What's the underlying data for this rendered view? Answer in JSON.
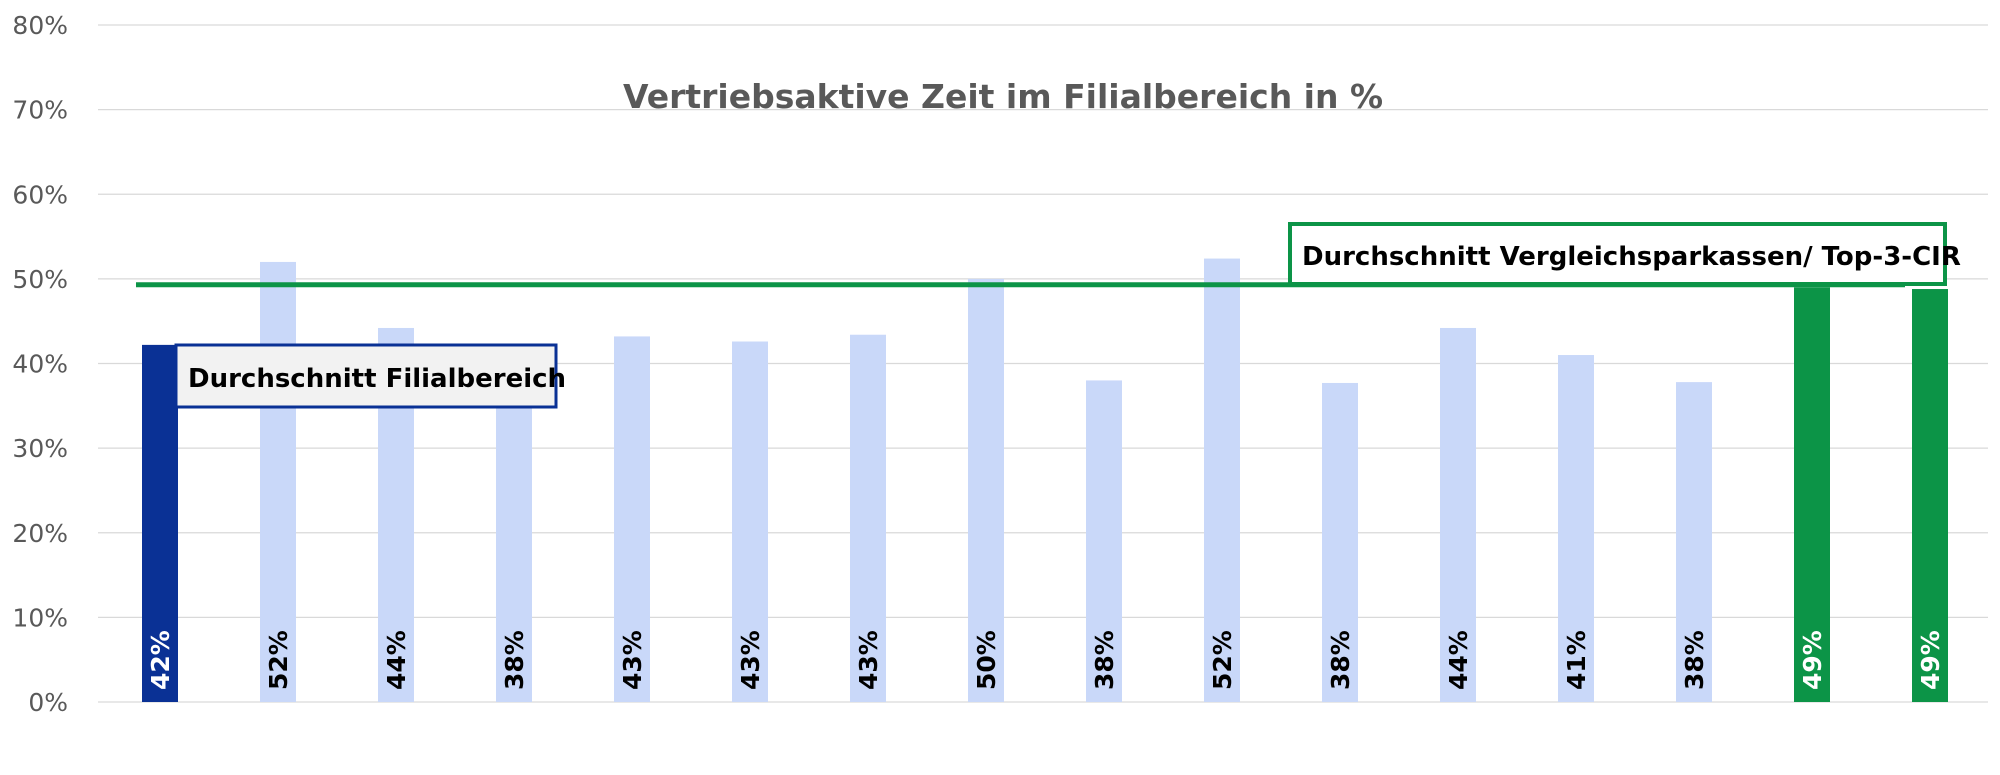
{
  "chart_data": {
    "type": "bar",
    "title": "Vertriebsaktive Zeit im Filialbereich in %",
    "xlabel": "",
    "ylabel": "",
    "ylim": [
      0,
      80
    ],
    "yticks": [
      0,
      10,
      20,
      30,
      40,
      50,
      60,
      70,
      80
    ],
    "ytick_labels": [
      "0%",
      "10%",
      "20%",
      "30%",
      "40%",
      "50%",
      "60%",
      "70%",
      "80%"
    ],
    "grid": true,
    "values": [
      42.2,
      52,
      44.2,
      38,
      43.2,
      42.6,
      43.4,
      50,
      38,
      52.4,
      37.7,
      44.2,
      41,
      37.8,
      49,
      48.8
    ],
    "data_labels": [
      "42%",
      "52%",
      "44%",
      "38%",
      "43%",
      "43%",
      "43%",
      "50%",
      "38%",
      "52%",
      "38%",
      "44%",
      "41%",
      "38%",
      "49%",
      "49%"
    ],
    "bar_colors": [
      "#0a3195",
      "#c9d8f9",
      "#c9d8f9",
      "#c9d8f9",
      "#c9d8f9",
      "#c9d8f9",
      "#c9d8f9",
      "#c9d8f9",
      "#c9d8f9",
      "#c9d8f9",
      "#c9d8f9",
      "#c9d8f9",
      "#c9d8f9",
      "#c9d8f9",
      "#0c9447",
      "#0c9447"
    ],
    "label_colors": [
      "#ffffff",
      "#000000",
      "#000000",
      "#000000",
      "#000000",
      "#000000",
      "#000000",
      "#000000",
      "#000000",
      "#000000",
      "#000000",
      "#000000",
      "#000000",
      "#000000",
      "#ffffff",
      "#ffffff"
    ],
    "reference_line": {
      "value": 49.3,
      "color": "#0c9447"
    },
    "annotations": [
      {
        "text": "Durchschnitt Filialbereich",
        "border_color": "#0a3195",
        "fill": "#f2f2f2",
        "anchor_bar": 0
      },
      {
        "text": "Durchschnitt Vergleichsparkassen/ Top-3-CIR",
        "border_color": "#0c9447",
        "fill": "#ffffff",
        "anchor_bar": 14
      }
    ],
    "colors": {
      "grid": "#d9d9d9",
      "tick_text": "#595959",
      "title_text": "#595959"
    }
  }
}
